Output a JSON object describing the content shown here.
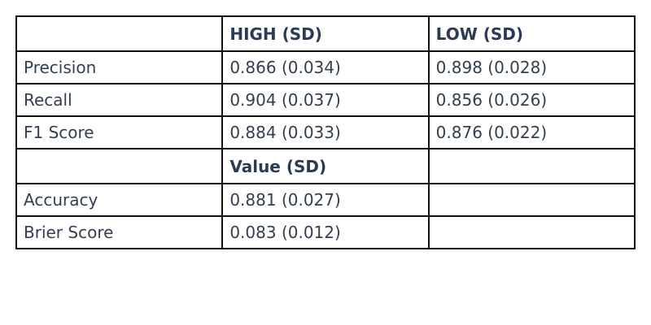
{
  "table": {
    "header": {
      "blank": "",
      "high": "HIGH (SD)",
      "low": "LOW (SD)"
    },
    "class_rows": [
      {
        "metric": "Precision",
        "high": "0.866 (0.034)",
        "low": "0.898 (0.028)"
      },
      {
        "metric": "Recall",
        "high": "0.904 (0.037)",
        "low": "0.856 (0.026)"
      },
      {
        "metric": "F1 Score",
        "high": "0.884 (0.033)",
        "low": "0.876 (0.022)"
      }
    ],
    "subheader": {
      "blank": "",
      "value": "Value (SD)",
      "empty": ""
    },
    "overall_rows": [
      {
        "metric": "Accuracy",
        "value": "0.881 (0.027)",
        "empty": ""
      },
      {
        "metric": "Brier Score",
        "value": "0.083 (0.012)",
        "empty": ""
      }
    ]
  }
}
